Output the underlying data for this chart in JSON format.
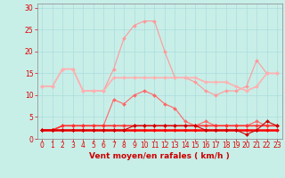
{
  "x": [
    0,
    1,
    2,
    3,
    4,
    5,
    6,
    7,
    8,
    9,
    10,
    11,
    12,
    13,
    14,
    15,
    16,
    17,
    18,
    19,
    20,
    21,
    22,
    23
  ],
  "series": [
    {
      "name": "rafales_high",
      "color": "#FF9999",
      "linewidth": 0.8,
      "marker": "D",
      "markersize": 2.0,
      "values": [
        12,
        12,
        16,
        16,
        11,
        11,
        11,
        16,
        23,
        26,
        27,
        27,
        20,
        14,
        14,
        13,
        11,
        10,
        11,
        11,
        12,
        18,
        15,
        15
      ]
    },
    {
      "name": "moyen_high",
      "color": "#FFB0B0",
      "linewidth": 1.2,
      "marker": "D",
      "markersize": 2.0,
      "values": [
        12,
        12,
        16,
        16,
        11,
        11,
        11,
        14,
        14,
        14,
        14,
        14,
        14,
        14,
        14,
        14,
        13,
        13,
        13,
        12,
        11,
        12,
        15,
        15
      ]
    },
    {
      "name": "rafales_mid",
      "color": "#FF6666",
      "linewidth": 0.8,
      "marker": "D",
      "markersize": 2.0,
      "values": [
        2,
        2,
        3,
        3,
        3,
        3,
        3,
        9,
        8,
        10,
        11,
        10,
        8,
        7,
        4,
        3,
        4,
        3,
        3,
        3,
        3,
        4,
        3,
        3
      ]
    },
    {
      "name": "moyen_mid",
      "color": "#FF3333",
      "linewidth": 1.2,
      "marker": "D",
      "markersize": 2.0,
      "values": [
        2,
        2,
        3,
        3,
        3,
        3,
        3,
        3,
        3,
        3,
        3,
        3,
        3,
        3,
        3,
        3,
        3,
        3,
        3,
        3,
        3,
        3,
        3,
        3
      ]
    },
    {
      "name": "moyen_low",
      "color": "#FF0000",
      "linewidth": 1.8,
      "marker": "D",
      "markersize": 2.0,
      "values": [
        2,
        2,
        2,
        2,
        2,
        2,
        2,
        2,
        2,
        2,
        2,
        2,
        2,
        2,
        2,
        2,
        2,
        2,
        2,
        2,
        2,
        2,
        2,
        2
      ]
    },
    {
      "name": "rafales_low",
      "color": "#CC0000",
      "linewidth": 0.8,
      "marker": "D",
      "markersize": 2.0,
      "values": [
        2,
        2,
        2,
        2,
        2,
        2,
        2,
        2,
        2,
        3,
        3,
        3,
        3,
        3,
        3,
        3,
        2,
        2,
        2,
        2,
        1,
        2,
        4,
        3
      ]
    }
  ],
  "xlabel": "Vent moyen/en rafales ( km/h )",
  "ylim": [
    0,
    31
  ],
  "xlim": [
    -0.5,
    23.5
  ],
  "yticks": [
    0,
    5,
    10,
    15,
    20,
    25,
    30
  ],
  "xticks": [
    0,
    1,
    2,
    3,
    4,
    5,
    6,
    7,
    8,
    9,
    10,
    11,
    12,
    13,
    14,
    15,
    16,
    17,
    18,
    19,
    20,
    21,
    22,
    23
  ],
  "background_color": "#C8EEE8",
  "grid_color": "#AADDDD",
  "tick_color": "#DD0000",
  "xlabel_color": "#CC0000",
  "xlabel_fontsize": 6.5,
  "tick_fontsize": 5.5
}
